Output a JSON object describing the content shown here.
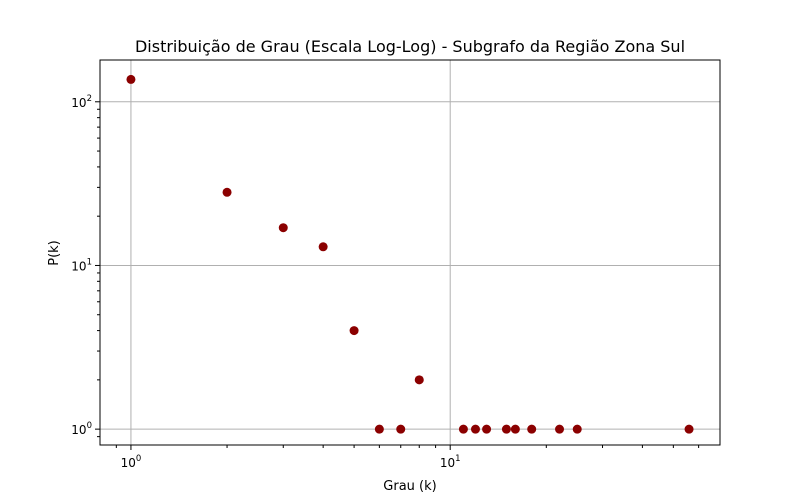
{
  "chart_data": {
    "type": "scatter",
    "title": "Distribuição de Grau (Escala Log-Log) - Subgrafo da Região Zona Sul",
    "xlabel": "Grau (k)",
    "ylabel": "P(k)",
    "xscale": "log",
    "yscale": "log",
    "xlim": [
      0.8,
      70
    ],
    "ylim": [
      0.8,
      180
    ],
    "grid": true,
    "marker_color": "#8b0000",
    "x_ticks": [
      {
        "value": 1,
        "base": "10",
        "exp": "0"
      },
      {
        "value": 10,
        "base": "10",
        "exp": "1"
      }
    ],
    "y_ticks": [
      {
        "value": 1,
        "base": "10",
        "exp": "0"
      },
      {
        "value": 10,
        "base": "10",
        "exp": "1"
      },
      {
        "value": 100,
        "base": "10",
        "exp": "2"
      }
    ],
    "points": [
      {
        "x": 1,
        "y": 137
      },
      {
        "x": 2,
        "y": 28
      },
      {
        "x": 3,
        "y": 17
      },
      {
        "x": 4,
        "y": 13
      },
      {
        "x": 5,
        "y": 4
      },
      {
        "x": 6,
        "y": 1
      },
      {
        "x": 7,
        "y": 1
      },
      {
        "x": 8,
        "y": 2
      },
      {
        "x": 11,
        "y": 1
      },
      {
        "x": 12,
        "y": 1
      },
      {
        "x": 13,
        "y": 1
      },
      {
        "x": 15,
        "y": 1
      },
      {
        "x": 16,
        "y": 1
      },
      {
        "x": 18,
        "y": 1
      },
      {
        "x": 22,
        "y": 1
      },
      {
        "x": 25,
        "y": 1
      },
      {
        "x": 56,
        "y": 1
      }
    ]
  }
}
